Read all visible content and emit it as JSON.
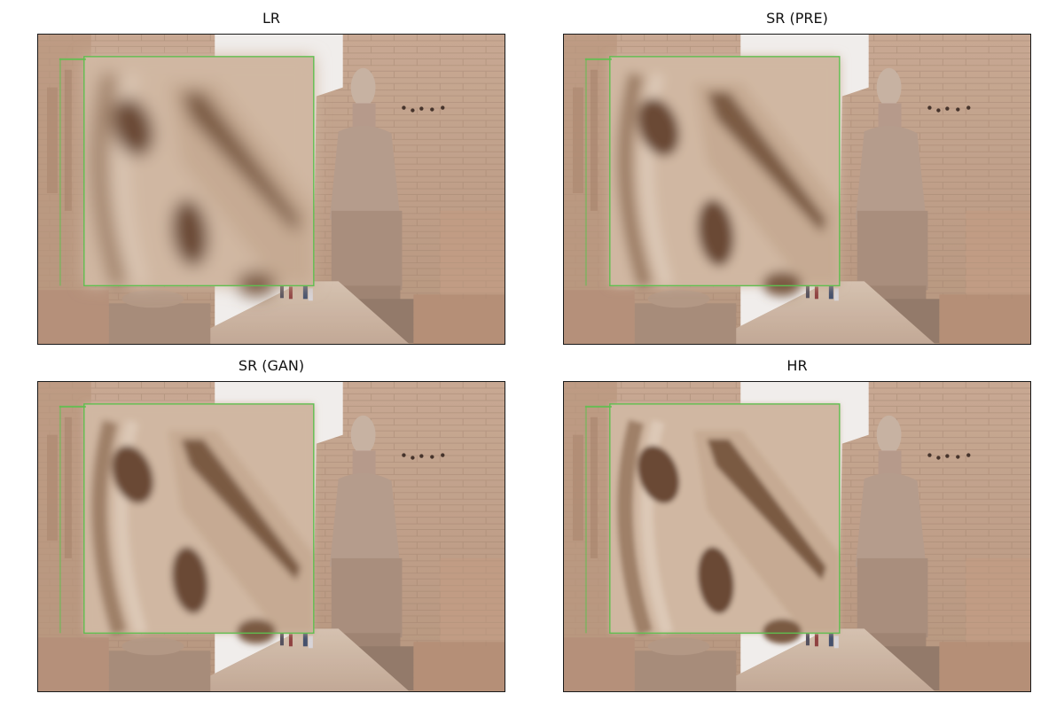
{
  "figure": {
    "panels": [
      {
        "title": "LR",
        "variant": "lr"
      },
      {
        "title": "SR (PRE)",
        "variant": "pre"
      },
      {
        "title": "SR (GAN)",
        "variant": "gan"
      },
      {
        "title": "HR",
        "variant": "hr"
      }
    ],
    "colors": {
      "sky": "#f4f4f2",
      "stone_light": "#d2b49b",
      "stone_mid": "#bf9f86",
      "stone_dark": "#8a6d58",
      "inset_border": "#5fbf4f"
    }
  }
}
